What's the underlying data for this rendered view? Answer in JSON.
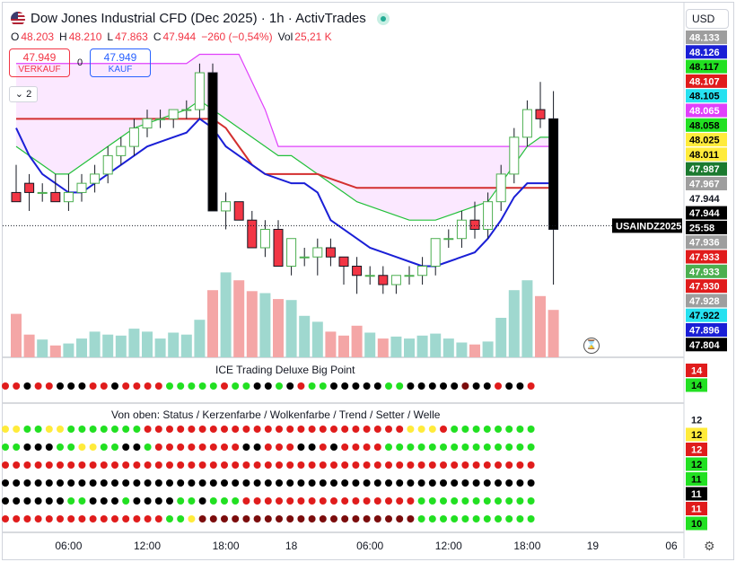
{
  "header": {
    "title": "Dow Jones Industrial CFD (Dec 2025) · 1h · ActivTrades",
    "currency": "USD"
  },
  "ohlc": {
    "o": "48.203",
    "h": "48.210",
    "l": "47.863",
    "c": "47.944",
    "change": "−260 (−0,54%)",
    "vol_label": "Vol",
    "vol": "25,21 K"
  },
  "trade": {
    "sell_price": "47.949",
    "sell_label": "VERKAUF",
    "buy_price": "47.949",
    "buy_label": "KAUF",
    "spread": "0"
  },
  "indicators_collapsed": "2",
  "panels": {
    "big_point_title": "ICE Trading Deluxe Big Point",
    "rows_title": "Von oben: Status / Kerzenfarbe / Wolkenfarbe / Trend / Setter / Welle"
  },
  "colors": {
    "up": "#4caf50",
    "down": "#f23645",
    "blue": "#1a1fd6",
    "magenta": "#e040fb",
    "dark_red": "#7b0c0c",
    "yellow": "#ffeb3b",
    "lime": "#22e022"
  },
  "chart_data": {
    "type": "candlestick",
    "ylim": [
      47.804,
      48.15
    ],
    "last_price": "47.944",
    "last_label": "USAINDZ2025",
    "countdown": "25:58",
    "xticks": [
      {
        "label": "06:00",
        "i": 4
      },
      {
        "label": "12:00",
        "i": 10
      },
      {
        "label": "18:00",
        "i": 16
      },
      {
        "label": "18",
        "i": 21
      },
      {
        "label": "06:00",
        "i": 27
      },
      {
        "label": "12:00",
        "i": 33
      },
      {
        "label": "18:00",
        "i": 39
      },
      {
        "label": "19",
        "i": 44
      },
      {
        "label": "06",
        "i": 50
      }
    ],
    "candles": [
      [
        47.98,
        48.01,
        47.97,
        47.97
      ],
      [
        47.99,
        48.0,
        47.96,
        47.98
      ],
      [
        47.98,
        47.99,
        47.97,
        47.98
      ],
      [
        47.98,
        48.0,
        47.97,
        47.97
      ],
      [
        47.97,
        48.0,
        47.96,
        47.98
      ],
      [
        47.98,
        48.0,
        47.97,
        47.99
      ],
      [
        47.99,
        48.01,
        47.98,
        48.0
      ],
      [
        48.0,
        48.03,
        47.99,
        48.02
      ],
      [
        48.02,
        48.04,
        48.01,
        48.03
      ],
      [
        48.03,
        48.06,
        48.02,
        48.05
      ],
      [
        48.05,
        48.07,
        48.04,
        48.06
      ],
      [
        48.06,
        48.07,
        48.05,
        48.06
      ],
      [
        48.06,
        48.07,
        48.05,
        48.07
      ],
      [
        48.07,
        48.08,
        48.06,
        48.07
      ],
      [
        48.07,
        48.12,
        48.06,
        48.11
      ],
      [
        48.11,
        48.12,
        47.96,
        47.96
      ],
      [
        47.96,
        47.98,
        47.94,
        47.97
      ],
      [
        47.97,
        47.97,
        47.95,
        47.95
      ],
      [
        47.95,
        47.96,
        47.92,
        47.92
      ],
      [
        47.92,
        47.95,
        47.91,
        47.94
      ],
      [
        47.94,
        47.95,
        47.9,
        47.9
      ],
      [
        47.9,
        47.93,
        47.89,
        47.93
      ],
      [
        47.91,
        47.92,
        47.9,
        47.91
      ],
      [
        47.91,
        47.93,
        47.89,
        47.92
      ],
      [
        47.92,
        47.93,
        47.9,
        47.91
      ],
      [
        47.91,
        47.91,
        47.88,
        47.9
      ],
      [
        47.9,
        47.91,
        47.87,
        47.89
      ],
      [
        47.89,
        47.9,
        47.88,
        47.89
      ],
      [
        47.89,
        47.9,
        47.87,
        47.88
      ],
      [
        47.88,
        47.89,
        47.87,
        47.89
      ],
      [
        47.89,
        47.9,
        47.88,
        47.89
      ],
      [
        47.89,
        47.91,
        47.88,
        47.9
      ],
      [
        47.9,
        47.93,
        47.89,
        47.93
      ],
      [
        47.93,
        47.94,
        47.92,
        47.93
      ],
      [
        47.93,
        47.96,
        47.92,
        47.95
      ],
      [
        47.95,
        47.97,
        47.93,
        47.94
      ],
      [
        47.94,
        47.98,
        47.93,
        47.97
      ],
      [
        47.97,
        48.01,
        47.96,
        48.0
      ],
      [
        48.0,
        48.05,
        47.99,
        48.04
      ],
      [
        48.04,
        48.08,
        48.03,
        48.07
      ],
      [
        48.07,
        48.1,
        48.05,
        48.06
      ],
      [
        48.06,
        48.09,
        47.88,
        47.94
      ]
    ],
    "volume": [
      44,
      23,
      18,
      12,
      14,
      19,
      26,
      23,
      22,
      29,
      26,
      19,
      25,
      23,
      38,
      68,
      86,
      78,
      67,
      65,
      59,
      58,
      42,
      36,
      26,
      22,
      32,
      25,
      19,
      21,
      19,
      22,
      24,
      19,
      15,
      13,
      16,
      40,
      68,
      78,
      62,
      48
    ],
    "lines": {
      "red_mid": [
        48.06,
        48.06,
        48.06,
        48.06,
        48.06,
        48.06,
        48.06,
        48.06,
        48.06,
        48.06,
        48.06,
        48.06,
        48.06,
        48.06,
        48.06,
        48.06,
        48.05,
        48.03,
        48.01,
        48.0,
        48.0,
        48.0,
        48.0,
        48.0,
        47.995,
        47.99,
        47.985,
        47.985,
        47.985,
        47.985,
        47.985,
        47.985,
        47.985,
        47.985,
        47.985,
        47.985,
        47.985,
        47.985,
        47.985,
        47.985,
        47.985,
        47.985
      ],
      "blue": [
        48.05,
        48.02,
        48.0,
        47.99,
        47.98,
        47.98,
        47.99,
        48.0,
        48.01,
        48.02,
        48.03,
        48.035,
        48.04,
        48.045,
        48.06,
        48.05,
        48.03,
        48.02,
        48.01,
        48.0,
        47.995,
        47.99,
        47.99,
        47.98,
        47.95,
        47.94,
        47.93,
        47.92,
        47.915,
        47.91,
        47.905,
        47.9,
        47.9,
        47.905,
        47.91,
        47.915,
        47.93,
        47.95,
        47.975,
        47.99,
        47.99,
        47.99
      ],
      "green": [
        48.03,
        48.02,
        48.01,
        48.0,
        48.0,
        48.01,
        48.02,
        48.03,
        48.04,
        48.05,
        48.055,
        48.06,
        48.065,
        48.07,
        48.08,
        48.07,
        48.06,
        48.05,
        48.04,
        48.03,
        48.02,
        48.02,
        48.01,
        48.0,
        47.99,
        47.98,
        47.97,
        47.965,
        47.96,
        47.955,
        47.95,
        47.95,
        47.95,
        47.955,
        47.96,
        47.965,
        47.97,
        47.99,
        48.01,
        48.03,
        48.04,
        48.04
      ],
      "magenta": [
        48.12,
        48.12,
        48.12,
        48.12,
        48.12,
        48.12,
        48.12,
        48.12,
        48.12,
        48.12,
        48.12,
        48.12,
        48.12,
        48.12,
        48.13,
        48.13,
        48.13,
        48.13,
        48.1,
        48.07,
        48.03,
        48.03,
        48.03,
        48.03,
        48.03,
        48.03,
        48.03,
        48.03,
        48.03,
        48.03,
        48.03,
        48.03,
        48.03,
        48.03,
        48.03,
        48.03,
        48.03,
        48.03,
        48.03,
        48.03,
        48.03,
        48.03
      ]
    }
  },
  "price_labels": [
    {
      "text": "48.133",
      "bg": "#9e9e9e",
      "fg": "#ffffff"
    },
    {
      "text": "48.126",
      "bg": "#1a1fd6",
      "fg": "#ffffff"
    },
    {
      "text": "48.117",
      "bg": "#22e022",
      "fg": "#000000"
    },
    {
      "text": "48.107",
      "bg": "#e01c1c",
      "fg": "#ffffff"
    },
    {
      "text": "48.105",
      "bg": "#26e1f0",
      "fg": "#000000"
    },
    {
      "text": "48.065",
      "bg": "#e040fb",
      "fg": "#ffffff"
    },
    {
      "text": "48.058",
      "bg": "#22e022",
      "fg": "#000000"
    },
    {
      "text": "48.025",
      "bg": "#ffeb3b",
      "fg": "#000000"
    },
    {
      "text": "48.011",
      "bg": "#ffeb3b",
      "fg": "#000000"
    },
    {
      "text": "47.987",
      "bg": "#1b7a2f",
      "fg": "#ffffff"
    },
    {
      "text": "47.967",
      "bg": "#9e9e9e",
      "fg": "#ffffff"
    },
    {
      "text": "47.944",
      "bg": "#ffffff",
      "fg": "#131722"
    },
    {
      "text": "47.944",
      "bg": "#000000",
      "fg": "#ffffff"
    },
    {
      "text": "25:58",
      "bg": "#000000",
      "fg": "#ffffff"
    },
    {
      "text": "47.936",
      "bg": "#9e9e9e",
      "fg": "#ffffff"
    },
    {
      "text": "47.933",
      "bg": "#e01c1c",
      "fg": "#ffffff"
    },
    {
      "text": "47.933",
      "bg": "#4caf50",
      "fg": "#ffffff"
    },
    {
      "text": "47.930",
      "bg": "#e01c1c",
      "fg": "#ffffff"
    },
    {
      "text": "47.928",
      "bg": "#9e9e9e",
      "fg": "#ffffff"
    },
    {
      "text": "47.922",
      "bg": "#26e1f0",
      "fg": "#000000"
    },
    {
      "text": "47.896",
      "bg": "#1a1fd6",
      "fg": "#ffffff"
    },
    {
      "text": "47.804",
      "bg": "#000000",
      "fg": "#ffffff"
    }
  ],
  "panel_labels": {
    "bigpoint": [
      {
        "text": "14",
        "bg": "#e01c1c",
        "fg": "#ffffff"
      },
      {
        "text": "14",
        "bg": "#22e022",
        "fg": "#000000"
      }
    ],
    "rows": [
      {
        "text": "12",
        "bg": "#ffffff",
        "fg": "#131722"
      },
      {
        "text": "12",
        "bg": "#ffeb3b",
        "fg": "#000000"
      },
      {
        "text": "12",
        "bg": "#e01c1c",
        "fg": "#ffffff"
      },
      {
        "text": "12",
        "bg": "#22e022",
        "fg": "#000000"
      },
      {
        "text": "11",
        "bg": "#22e022",
        "fg": "#000000"
      },
      {
        "text": "11",
        "bg": "#000000",
        "fg": "#ffffff"
      },
      {
        "text": "11",
        "bg": "#e01c1c",
        "fg": "#ffffff"
      },
      {
        "text": "10",
        "bg": "#22e022",
        "fg": "#000000"
      }
    ]
  },
  "dot_rows": {
    "bigpoint": "rrkrrkkkrrkrrrrgggggrggkkgkrggkkkkkggkkkkkdkkrkkrkrgggg",
    "status": "yyggyygggggggrrrrrrrrrrrrrrrrrrrrrrrryyyrgggggggg",
    "kerze": "ggkkkggyyggkkgrrrrrrrrkkrrrkkrkrrrrgggggggggggggg",
    "wolke": "rrrrrrrrrrrrrrrrrrrrrrrrrrrrrrrrrrrrrrrrrrrrrrrrr",
    "trend": "kkkkkkkkkkkkkkkkkkkkkkkkkkkkkkkkkkkkkkkkkkkkkkkkk",
    "setter": "kkkkkkggkkkgkkkkggkgggrrrrrrrrrrrrrrrrggggggggggg",
    "welle": "rrrrrrrrrrrrrrrggyddddddddddddddddddddggggggggggg"
  }
}
